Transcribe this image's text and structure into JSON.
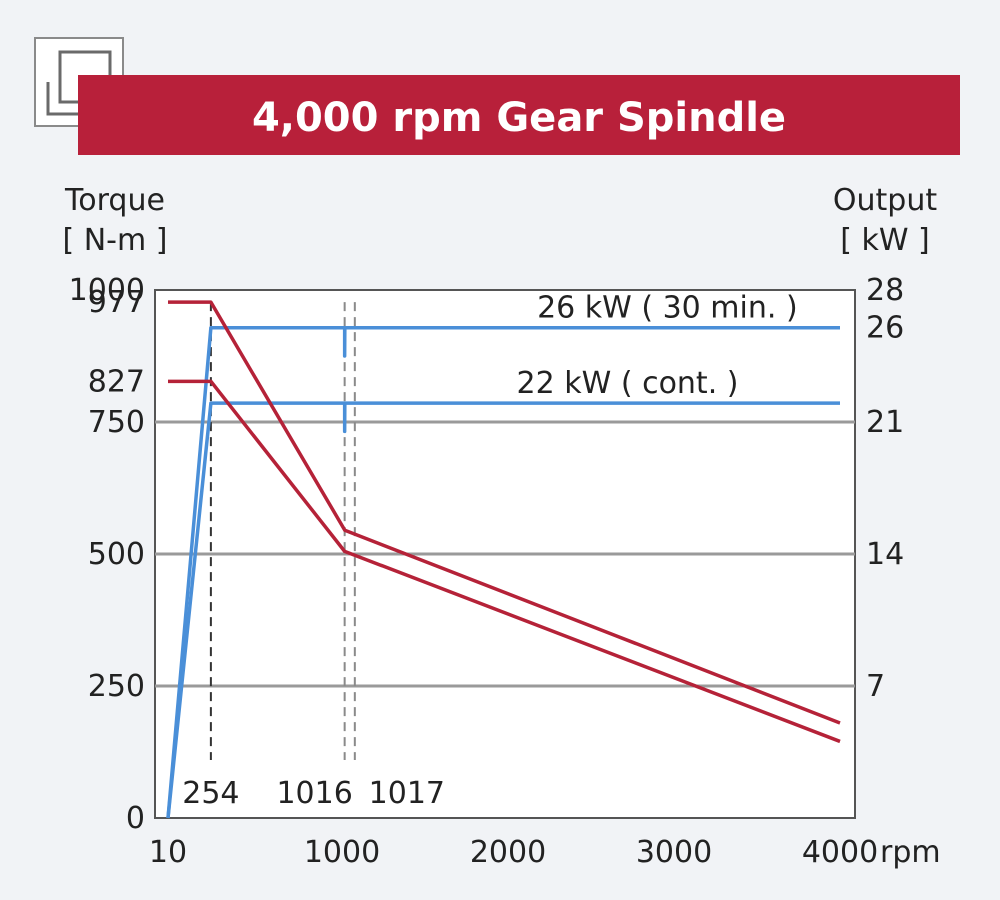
{
  "chart_data": {
    "type": "line",
    "title": "4,000 rpm Gear Spindle",
    "xlabel": "rpm",
    "ylabel_left": [
      "Torque",
      "[ N-m ]"
    ],
    "ylabel_right": [
      "Output",
      "[ kW ]"
    ],
    "x_ticks": [
      {
        "value": 10,
        "label": "10"
      },
      {
        "value": 1000,
        "label": "1000"
      },
      {
        "value": 2000,
        "label": "2000"
      },
      {
        "value": 3000,
        "label": "3000"
      },
      {
        "value": 4000,
        "label": "4000"
      }
    ],
    "y_left_ticks": [
      {
        "value": 0,
        "label": "0"
      },
      {
        "value": 250,
        "label": "250"
      },
      {
        "value": 500,
        "label": "500"
      },
      {
        "value": 750,
        "label": "750"
      },
      {
        "value": 827,
        "label": "827"
      },
      {
        "value": 977,
        "label": "977"
      },
      {
        "value": 1000,
        "label": "1000"
      }
    ],
    "y_right_ticks": [
      {
        "value": 7,
        "label": "7"
      },
      {
        "value": 14,
        "label": "14"
      },
      {
        "value": 21,
        "label": "21"
      },
      {
        "value": 26,
        "label": "26"
      },
      {
        "value": 28,
        "label": "28"
      }
    ],
    "xlim": [
      10,
      4000
    ],
    "ylim_left": [
      0,
      1000
    ],
    "ylim_right": [
      0,
      28
    ],
    "gridlines_left": [
      250,
      500,
      750
    ],
    "markers": [
      {
        "x": 254,
        "label": "254"
      },
      {
        "x": 1016,
        "label": "1016"
      },
      {
        "x": 1017,
        "label": "1017"
      }
    ],
    "series": [
      {
        "axis": "right",
        "color": "#4a8fd8",
        "points": [
          [
            10,
            0
          ],
          [
            254,
            26
          ],
          [
            1016,
            26
          ],
          [
            1016,
            24.5
          ],
          [
            1017,
            26
          ],
          [
            4000,
            26
          ]
        ]
      },
      {
        "axis": "right",
        "color": "#4a8fd8",
        "points": [
          [
            10,
            0
          ],
          [
            254,
            22
          ],
          [
            1016,
            22
          ],
          [
            1016,
            20.5
          ],
          [
            1017,
            22
          ],
          [
            4000,
            22
          ]
        ]
      },
      {
        "axis": "left",
        "color": "#b52238",
        "points": [
          [
            10,
            977
          ],
          [
            254,
            977
          ],
          [
            1017,
            545
          ],
          [
            4000,
            180
          ]
        ]
      },
      {
        "axis": "left",
        "color": "#b52238",
        "points": [
          [
            10,
            827
          ],
          [
            254,
            827
          ],
          [
            1016,
            505
          ],
          [
            4000,
            145
          ]
        ]
      }
    ],
    "annotations": [
      {
        "text": "26 kW ( 30 min. )",
        "x": 2960,
        "y_right": 26
      },
      {
        "text": "22 kW ( cont. )",
        "x": 2720,
        "y_right": 22
      }
    ]
  }
}
